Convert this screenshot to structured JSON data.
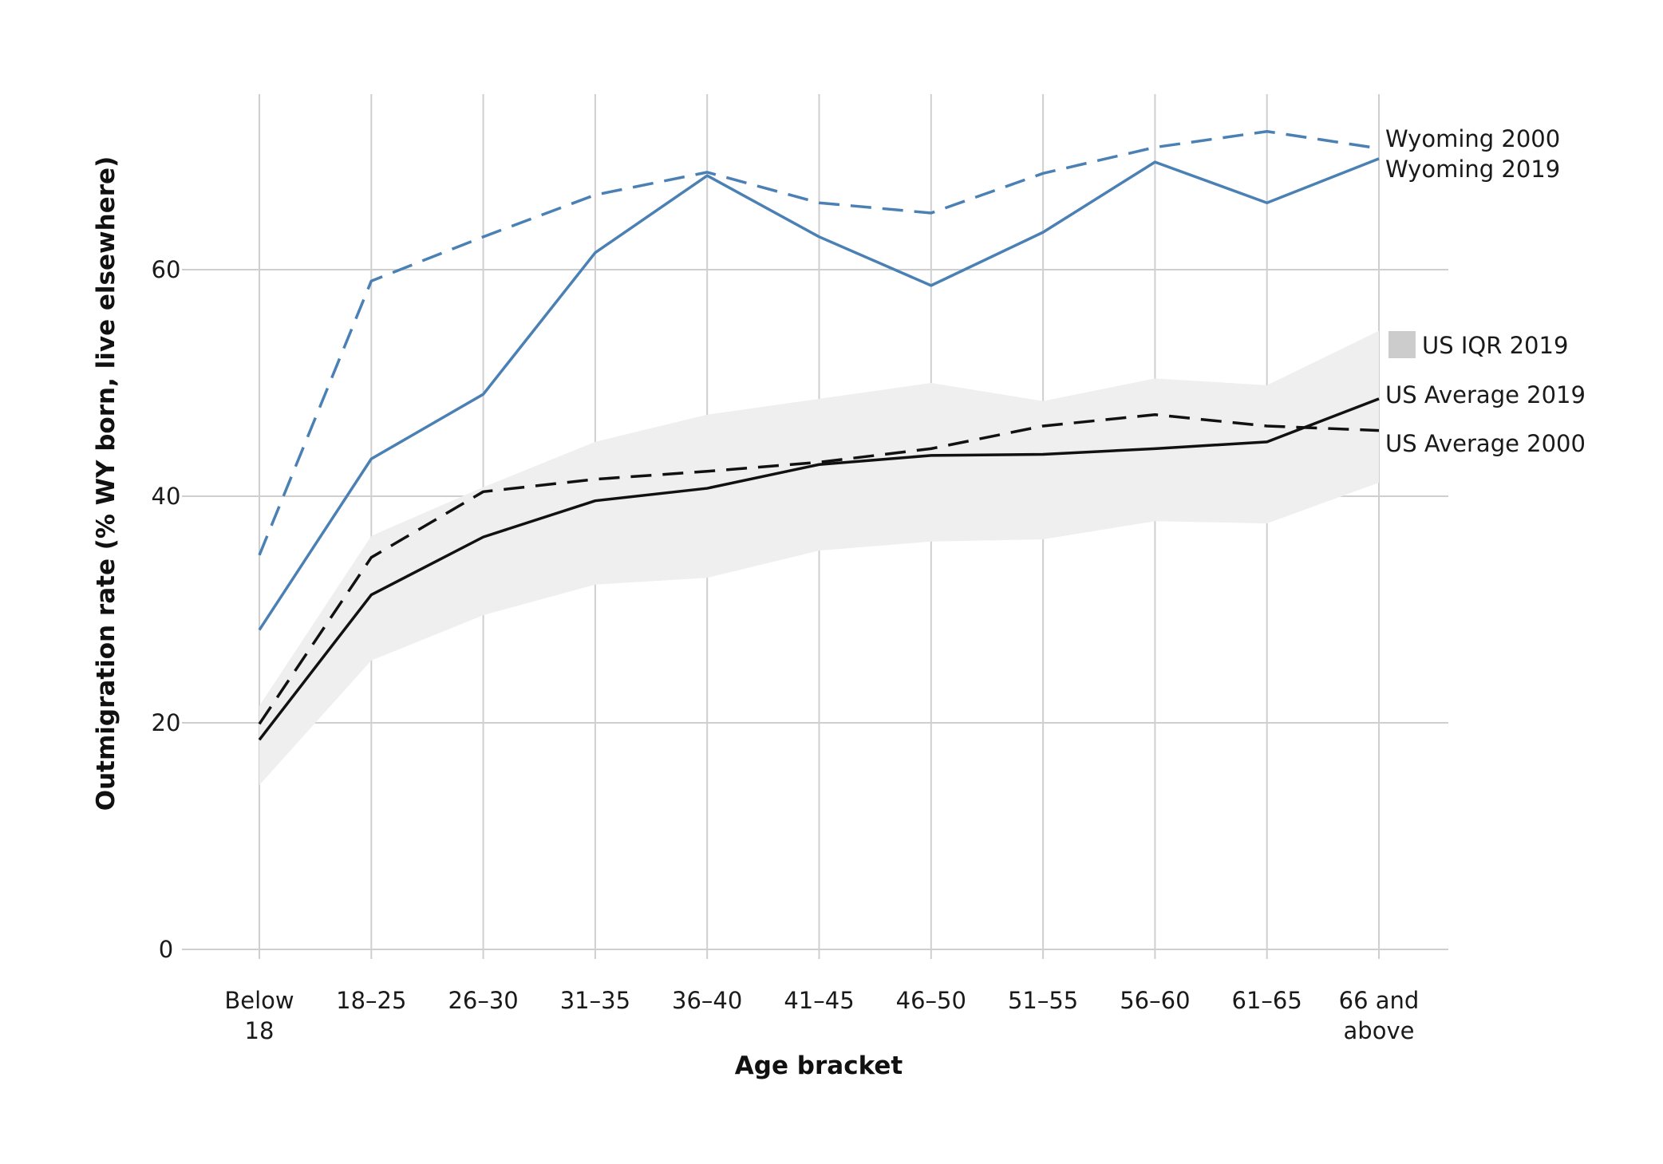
{
  "chart_data": {
    "type": "line",
    "title": "",
    "xlabel": "Age bracket",
    "ylabel": "Outmigration rate (% WY born, live elsewhere)",
    "categories": [
      [
        "Below",
        "18"
      ],
      [
        "18–25"
      ],
      [
        "26–30"
      ],
      [
        "31–35"
      ],
      [
        "36–40"
      ],
      [
        "41–45"
      ],
      [
        "46–50"
      ],
      [
        "51–55"
      ],
      [
        "56–60"
      ],
      [
        "61–65"
      ],
      [
        "66 and",
        "above"
      ]
    ],
    "ylim": [
      0,
      72
    ],
    "yticks": [
      0,
      20,
      40,
      60
    ],
    "grid": true,
    "legend": "right, labels at line ends",
    "band": {
      "name": "US IQR 2019",
      "color": "#efefef",
      "swatch_color": "#cccccc",
      "lower": [
        14.5,
        25.5,
        29.5,
        32.2,
        32.8,
        35.2,
        36.0,
        36.2,
        37.8,
        37.6,
        41.2
      ],
      "upper": [
        21.5,
        36.5,
        40.8,
        44.8,
        47.2,
        48.6,
        50.0,
        48.4,
        50.4,
        49.8,
        54.6
      ]
    },
    "series": [
      {
        "name": "Wyoming 2000",
        "color": "#4a80b4",
        "dash": "dashed",
        "values": [
          34.8,
          59.0,
          62.9,
          66.6,
          68.6,
          65.9,
          65.0,
          68.5,
          70.8,
          72.2,
          70.7
        ]
      },
      {
        "name": "Wyoming 2019",
        "color": "#4a80b4",
        "dash": "solid",
        "values": [
          28.2,
          43.3,
          49.0,
          61.5,
          68.3,
          62.9,
          58.6,
          63.3,
          69.5,
          65.9,
          69.8
        ]
      },
      {
        "name": "US Average 2019",
        "color": "#111111",
        "dash": "solid",
        "values": [
          18.5,
          31.3,
          36.4,
          39.6,
          40.7,
          42.8,
          43.6,
          43.7,
          44.2,
          44.8,
          48.6
        ]
      },
      {
        "name": "US Average 2000",
        "color": "#111111",
        "dash": "dashed",
        "values": [
          19.9,
          34.6,
          40.4,
          41.5,
          42.2,
          43.0,
          44.2,
          46.2,
          47.2,
          46.2,
          45.8
        ]
      }
    ],
    "legend_entries": [
      "Wyoming 2000",
      "Wyoming 2019",
      "US IQR 2019",
      "US Average 2019",
      "US Average 2000"
    ]
  }
}
